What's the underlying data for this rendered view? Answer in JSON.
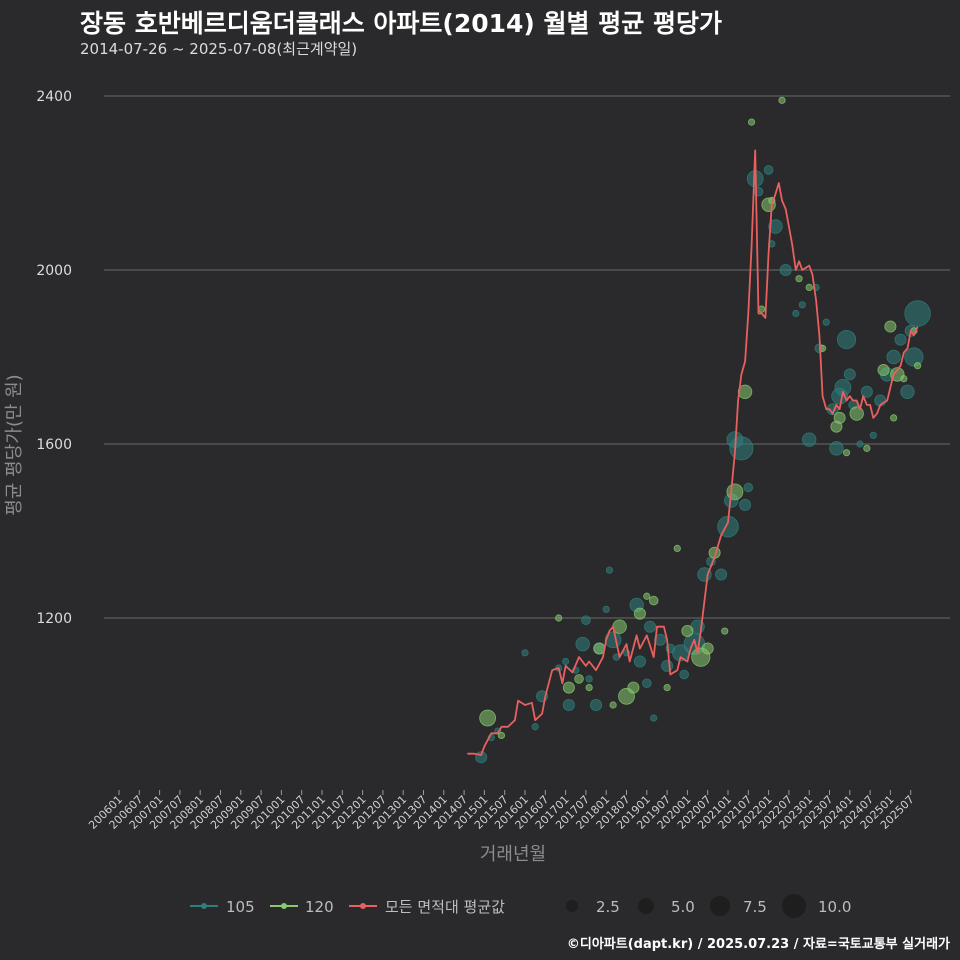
{
  "chart_data": {
    "type": "scatter",
    "title": "장동 호반베르디움더클래스 아파트(2014) 월별 평균 평당가",
    "subtitle": "2014-07-26 ~ 2025-07-08(최근계약일)",
    "xlabel": "거래년월",
    "ylabel": "평균 평당가(만 원)",
    "y_ticks": [
      1200,
      1600,
      2000,
      2400
    ],
    "ylim": [
      840,
      2440
    ],
    "x_tick_labels": [
      "200601",
      "200607",
      "200701",
      "200707",
      "200801",
      "200807",
      "200901",
      "200907",
      "201001",
      "201007",
      "201101",
      "201107",
      "201201",
      "201207",
      "201301",
      "201307",
      "201401",
      "201407",
      "201501",
      "201507",
      "201601",
      "201607",
      "201701",
      "201707",
      "201801",
      "201807",
      "201901",
      "201907",
      "202001",
      "202007",
      "202101",
      "202107",
      "202201",
      "202207",
      "202301",
      "202307",
      "202401",
      "202407",
      "202501",
      "202507"
    ],
    "legend": {
      "series": [
        {
          "name": "105",
          "color": "#2e7f7c"
        },
        {
          "name": "120",
          "color": "#86c96f"
        },
        {
          "name": "모든 면적대 평균값",
          "color": "#e8605f"
        }
      ],
      "sizes": [
        "2.5",
        "5.0",
        "7.5",
        "10.0"
      ]
    },
    "series": [
      {
        "name": "모든 면적대 평균값",
        "kind": "line",
        "color": "#e8605f",
        "points": [
          [
            2014.58,
            888
          ],
          [
            2014.75,
            888
          ],
          [
            2014.92,
            885
          ],
          [
            2015.0,
            905
          ],
          [
            2015.17,
            935
          ],
          [
            2015.33,
            935
          ],
          [
            2015.42,
            950
          ],
          [
            2015.58,
            950
          ],
          [
            2015.75,
            965
          ],
          [
            2015.83,
            1010
          ],
          [
            2016.0,
            1000
          ],
          [
            2016.17,
            1005
          ],
          [
            2016.25,
            965
          ],
          [
            2016.42,
            980
          ],
          [
            2016.5,
            1020
          ],
          [
            2016.67,
            1080
          ],
          [
            2016.83,
            1085
          ],
          [
            2016.92,
            1050
          ],
          [
            2017.0,
            1090
          ],
          [
            2017.17,
            1075
          ],
          [
            2017.33,
            1110
          ],
          [
            2017.5,
            1090
          ],
          [
            2017.58,
            1100
          ],
          [
            2017.75,
            1080
          ],
          [
            2017.92,
            1110
          ],
          [
            2018.0,
            1150
          ],
          [
            2018.08,
            1170
          ],
          [
            2018.17,
            1180
          ],
          [
            2018.33,
            1110
          ],
          [
            2018.5,
            1140
          ],
          [
            2018.58,
            1100
          ],
          [
            2018.75,
            1160
          ],
          [
            2018.83,
            1130
          ],
          [
            2019.0,
            1160
          ],
          [
            2019.17,
            1110
          ],
          [
            2019.25,
            1180
          ],
          [
            2019.42,
            1180
          ],
          [
            2019.5,
            1150
          ],
          [
            2019.58,
            1070
          ],
          [
            2019.75,
            1080
          ],
          [
            2019.83,
            1110
          ],
          [
            2020.0,
            1100
          ],
          [
            2020.08,
            1130
          ],
          [
            2020.17,
            1150
          ],
          [
            2020.25,
            1120
          ],
          [
            2020.33,
            1170
          ],
          [
            2020.42,
            1240
          ],
          [
            2020.5,
            1300
          ],
          [
            2020.67,
            1340
          ],
          [
            2020.83,
            1390
          ],
          [
            2021.0,
            1420
          ],
          [
            2021.08,
            1490
          ],
          [
            2021.17,
            1580
          ],
          [
            2021.25,
            1700
          ],
          [
            2021.33,
            1760
          ],
          [
            2021.42,
            1790
          ],
          [
            2021.5,
            1900
          ],
          [
            2021.58,
            2050
          ],
          [
            2021.67,
            2275
          ],
          [
            2021.75,
            1900
          ],
          [
            2021.83,
            1900
          ],
          [
            2021.92,
            1890
          ],
          [
            2022.0,
            2040
          ],
          [
            2022.08,
            2150
          ],
          [
            2022.17,
            2175
          ],
          [
            2022.25,
            2200
          ],
          [
            2022.33,
            2160
          ],
          [
            2022.42,
            2140
          ],
          [
            2022.5,
            2100
          ],
          [
            2022.58,
            2060
          ],
          [
            2022.67,
            2000
          ],
          [
            2022.75,
            2020
          ],
          [
            2022.83,
            2000
          ],
          [
            2023.0,
            2010
          ],
          [
            2023.08,
            1990
          ],
          [
            2023.17,
            1930
          ],
          [
            2023.25,
            1850
          ],
          [
            2023.33,
            1710
          ],
          [
            2023.42,
            1680
          ],
          [
            2023.5,
            1680
          ],
          [
            2023.58,
            1670
          ],
          [
            2023.67,
            1690
          ],
          [
            2023.75,
            1680
          ],
          [
            2023.83,
            1720
          ],
          [
            2023.92,
            1700
          ],
          [
            2024.0,
            1710
          ],
          [
            2024.08,
            1700
          ],
          [
            2024.17,
            1700
          ],
          [
            2024.25,
            1680
          ],
          [
            2024.33,
            1710
          ],
          [
            2024.42,
            1690
          ],
          [
            2024.5,
            1690
          ],
          [
            2024.58,
            1660
          ],
          [
            2024.67,
            1670
          ],
          [
            2024.75,
            1690
          ],
          [
            2024.92,
            1700
          ],
          [
            2025.0,
            1730
          ],
          [
            2025.08,
            1760
          ],
          [
            2025.17,
            1770
          ],
          [
            2025.25,
            1780
          ],
          [
            2025.33,
            1810
          ],
          [
            2025.42,
            1820
          ],
          [
            2025.5,
            1860
          ],
          [
            2025.58,
            1850
          ],
          [
            2025.67,
            1870
          ]
        ]
      },
      {
        "name": "105",
        "kind": "scatter",
        "color": "#2e7f7c",
        "points": [
          [
            2014.92,
            880,
            3
          ],
          [
            2015.17,
            925,
            1
          ],
          [
            2015.33,
            940,
            1
          ],
          [
            2016.0,
            1120,
            1
          ],
          [
            2016.25,
            950,
            1
          ],
          [
            2016.42,
            1020,
            3
          ],
          [
            2016.83,
            1085,
            1
          ],
          [
            2017.0,
            1100,
            1
          ],
          [
            2017.08,
            1000,
            3
          ],
          [
            2017.25,
            1080,
            1
          ],
          [
            2017.42,
            1140,
            4
          ],
          [
            2017.5,
            1195,
            2
          ],
          [
            2017.58,
            1060,
            1
          ],
          [
            2017.75,
            1000,
            3
          ],
          [
            2017.83,
            1130,
            3
          ],
          [
            2018.0,
            1220,
            1
          ],
          [
            2018.08,
            1310,
            1
          ],
          [
            2018.17,
            1150,
            5
          ],
          [
            2018.25,
            1110,
            1
          ],
          [
            2018.5,
            1120,
            1
          ],
          [
            2018.75,
            1230,
            4
          ],
          [
            2018.83,
            1100,
            3
          ],
          [
            2019.0,
            1050,
            2
          ],
          [
            2019.08,
            1180,
            3
          ],
          [
            2019.17,
            970,
            1
          ],
          [
            2019.33,
            1150,
            3
          ],
          [
            2019.5,
            1090,
            3
          ],
          [
            2019.58,
            1130,
            2
          ],
          [
            2019.83,
            1120,
            5
          ],
          [
            2019.92,
            1070,
            2
          ],
          [
            2020.17,
            1140,
            7
          ],
          [
            2020.25,
            1180,
            4
          ],
          [
            2020.42,
            1300,
            4
          ],
          [
            2020.58,
            1330,
            2
          ],
          [
            2020.83,
            1300,
            3
          ],
          [
            2021.0,
            1410,
            7
          ],
          [
            2021.08,
            1470,
            4
          ],
          [
            2021.17,
            1610,
            5
          ],
          [
            2021.33,
            1590,
            8
          ],
          [
            2021.42,
            1460,
            3
          ],
          [
            2021.5,
            1500,
            2
          ],
          [
            2021.67,
            2210,
            5
          ],
          [
            2021.75,
            2180,
            2
          ],
          [
            2022.0,
            2230,
            2
          ],
          [
            2022.08,
            2060,
            1
          ],
          [
            2022.17,
            2100,
            4
          ],
          [
            2022.42,
            2000,
            3
          ],
          [
            2022.67,
            1900,
            1
          ],
          [
            2022.83,
            1920,
            1
          ],
          [
            2023.0,
            1610,
            4
          ],
          [
            2023.17,
            1960,
            1
          ],
          [
            2023.25,
            1820,
            2
          ],
          [
            2023.42,
            1880,
            1
          ],
          [
            2023.58,
            1680,
            3
          ],
          [
            2023.67,
            1590,
            4
          ],
          [
            2023.75,
            1710,
            5
          ],
          [
            2023.83,
            1730,
            5
          ],
          [
            2023.92,
            1840,
            6
          ],
          [
            2024.0,
            1760,
            3
          ],
          [
            2024.08,
            1690,
            2
          ],
          [
            2024.25,
            1600,
            1
          ],
          [
            2024.42,
            1720,
            3
          ],
          [
            2024.58,
            1620,
            1
          ],
          [
            2024.75,
            1700,
            3
          ],
          [
            2024.92,
            1760,
            4
          ],
          [
            2025.08,
            1800,
            4
          ],
          [
            2025.25,
            1840,
            3
          ],
          [
            2025.42,
            1720,
            4
          ],
          [
            2025.5,
            1860,
            3
          ],
          [
            2025.58,
            1800,
            6
          ],
          [
            2025.67,
            1900,
            9
          ]
        ]
      },
      {
        "name": "120",
        "kind": "scatter",
        "color": "#86c96f",
        "points": [
          [
            2015.08,
            970,
            5
          ],
          [
            2015.42,
            930,
            1
          ],
          [
            2016.83,
            1200,
            1
          ],
          [
            2017.08,
            1040,
            3
          ],
          [
            2017.33,
            1060,
            2
          ],
          [
            2017.58,
            1040,
            1
          ],
          [
            2017.83,
            1130,
            3
          ],
          [
            2018.17,
            1000,
            1
          ],
          [
            2018.33,
            1180,
            4
          ],
          [
            2018.5,
            1020,
            5
          ],
          [
            2018.67,
            1040,
            3
          ],
          [
            2018.83,
            1210,
            3
          ],
          [
            2019.0,
            1250,
            1
          ],
          [
            2019.17,
            1240,
            2
          ],
          [
            2019.5,
            1040,
            1
          ],
          [
            2019.75,
            1360,
            1
          ],
          [
            2020.0,
            1170,
            3
          ],
          [
            2020.33,
            1110,
            6
          ],
          [
            2020.5,
            1130,
            3
          ],
          [
            2020.67,
            1350,
            3
          ],
          [
            2020.92,
            1170,
            1
          ],
          [
            2021.17,
            1490,
            5
          ],
          [
            2021.42,
            1720,
            4
          ],
          [
            2021.58,
            2340,
            1
          ],
          [
            2021.83,
            1910,
            1
          ],
          [
            2022.0,
            2150,
            4
          ],
          [
            2022.08,
            2160,
            1
          ],
          [
            2022.33,
            2390,
            1
          ],
          [
            2022.75,
            1980,
            1
          ],
          [
            2023.0,
            1960,
            1
          ],
          [
            2023.33,
            1820,
            1
          ],
          [
            2023.67,
            1640,
            3
          ],
          [
            2023.75,
            1660,
            3
          ],
          [
            2023.92,
            1580,
            1
          ],
          [
            2024.17,
            1670,
            4
          ],
          [
            2024.42,
            1590,
            1
          ],
          [
            2024.83,
            1770,
            3
          ],
          [
            2025.0,
            1870,
            3
          ],
          [
            2025.08,
            1660,
            1
          ],
          [
            2025.17,
            1760,
            4
          ],
          [
            2025.33,
            1750,
            1
          ],
          [
            2025.58,
            1860,
            1
          ],
          [
            2025.67,
            1780,
            1
          ]
        ]
      }
    ]
  },
  "source_note": "©디아파트(dapt.kr) / 2025.07.23 / 자료=국토교통부 실거래가"
}
